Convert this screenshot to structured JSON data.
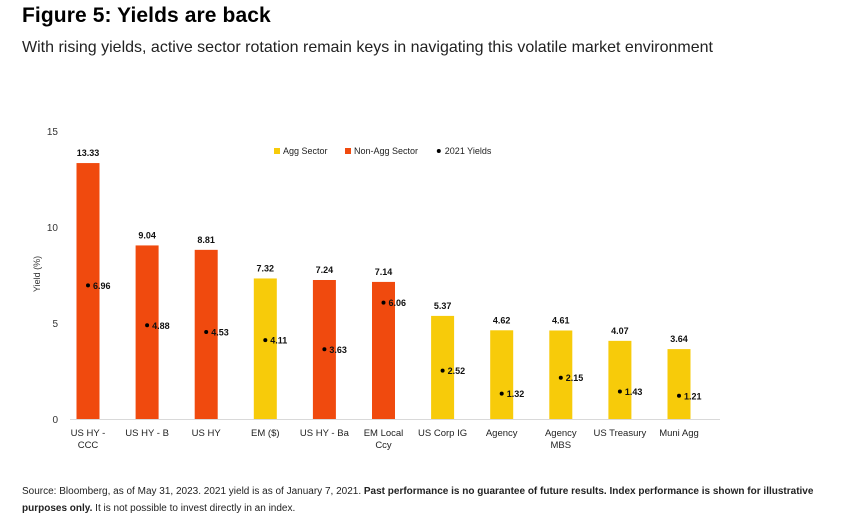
{
  "title": "Figure 5: Yields are back",
  "subtitle": "With rising yields, active sector rotation remain keys in navigating this volatile market environment",
  "source": {
    "part1": "Source: Bloomberg, as of May 31, 2023. 2021 yield is as of January 7, 2021. ",
    "bold": "Past performance is no guarantee of future results. Index performance is shown for illustrative purposes only.",
    "part2": " It is not possible to invest directly in an index."
  },
  "colors": {
    "agg": "#F7CB0A",
    "non_agg": "#F04A0E",
    "dot": "#000000"
  },
  "chart_data": {
    "type": "bar",
    "ylabel": "Yield (%)",
    "ylim": [
      0,
      15
    ],
    "yticks": [
      0,
      5,
      10,
      15
    ],
    "legend_position": "top-center",
    "legend": [
      {
        "label": "Agg Sector",
        "color": "#F7CB0A",
        "marker": "square"
      },
      {
        "label": "Non-Agg Sector",
        "color": "#F04A0E",
        "marker": "square"
      },
      {
        "label": "2021 Yields",
        "color": "#000000",
        "marker": "dot"
      }
    ],
    "categories": [
      [
        "US HY -",
        "CCC"
      ],
      [
        "US HY - B"
      ],
      [
        "US HY"
      ],
      [
        "EM ($)"
      ],
      [
        "US HY - Ba"
      ],
      [
        "EM Local",
        "Ccy"
      ],
      [
        "US Corp IG"
      ],
      [
        "Agency"
      ],
      [
        "Agency",
        "MBS"
      ],
      [
        "US Treasury"
      ],
      [
        "Muni Agg"
      ]
    ],
    "sector": [
      "Non-Agg",
      "Non-Agg",
      "Non-Agg",
      "Agg",
      "Non-Agg",
      "Non-Agg",
      "Agg",
      "Agg",
      "Agg",
      "Agg",
      "Agg"
    ],
    "values": [
      13.33,
      9.04,
      8.81,
      7.32,
      7.24,
      7.14,
      5.37,
      4.62,
      4.61,
      4.07,
      3.64
    ],
    "yields_2021": [
      6.96,
      4.88,
      4.53,
      4.11,
      3.63,
      6.06,
      2.52,
      1.32,
      2.15,
      1.43,
      1.21
    ]
  }
}
